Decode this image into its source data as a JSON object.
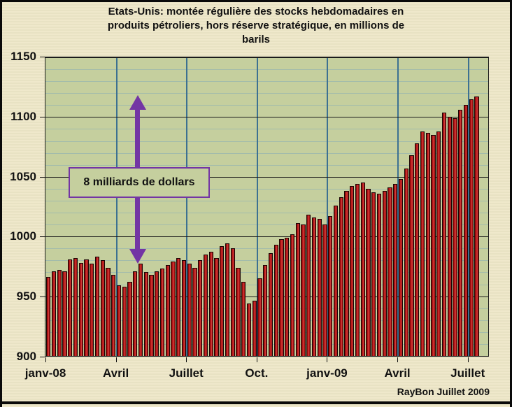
{
  "title": "Etats-Unis: montée régulière des stocks hebdomadaires en produits pétroliers, hors réserve stratégique,  en millions de barils",
  "title_lines": [
    "Etats-Unis: montée régulière des stocks hebdomadaires en",
    "produits pétroliers, hors réserve stratégique,  en millions de",
    "barils"
  ],
  "annotation": {
    "label": "8 milliards de dollars"
  },
  "credit": "RayBon Juillet  2009",
  "y_axis": {
    "tick_labels": [
      "1150",
      "1100",
      "1050",
      "1000",
      "950",
      "900"
    ]
  },
  "x_axis": {
    "tick_labels": [
      "janv-08",
      "Avril",
      "Juillet",
      "Oct.",
      "janv-09",
      "Avril",
      "Juillet"
    ]
  },
  "chart_data": {
    "type": "bar",
    "title": "Etats-Unis: montée régulière des stocks hebdomadaires en produits pétroliers, hors réserve stratégique, en millions de barils",
    "xlabel": "",
    "ylabel": "millions de barils",
    "ylim": [
      900,
      1150
    ],
    "y_major_step": 50,
    "y_minor_step": 10,
    "grid": true,
    "x_tick_labels": [
      "janv-08",
      "Avril",
      "Juillet",
      "Oct.",
      "janv-09",
      "Avril",
      "Juillet"
    ],
    "x_tick_indices": [
      0,
      13,
      26,
      39,
      52,
      65,
      78
    ],
    "values": [
      966,
      971,
      972,
      971,
      981,
      982,
      978,
      981,
      977,
      983,
      980,
      974,
      968,
      959,
      958,
      962,
      971,
      977,
      970,
      968,
      971,
      973,
      976,
      979,
      982,
      980,
      977,
      974,
      980,
      985,
      987,
      982,
      992,
      994,
      990,
      974,
      962,
      944,
      946,
      965,
      976,
      986,
      993,
      998,
      999,
      1002,
      1011,
      1010,
      1018,
      1016,
      1015,
      1010,
      1017,
      1026,
      1033,
      1038,
      1042,
      1044,
      1045,
      1040,
      1037,
      1036,
      1038,
      1041,
      1044,
      1048,
      1057,
      1068,
      1078,
      1088,
      1087,
      1085,
      1088,
      1104,
      1100,
      1099,
      1106,
      1110,
      1115,
      1117
    ],
    "annotation": {
      "label": "8 milliards de dollars",
      "arrow_span_values": [
        980,
        1118
      ]
    },
    "colors": {
      "bar": "#b01212",
      "plot_bg": "#c5cf9e",
      "page_bg": "#eee7c8",
      "grid_major": "#1a1a1a",
      "grid_minor": "rgba(140,175,180,0.6)",
      "vline": "#3d7191",
      "arrow": "#7335a4",
      "text": "#111111"
    }
  }
}
